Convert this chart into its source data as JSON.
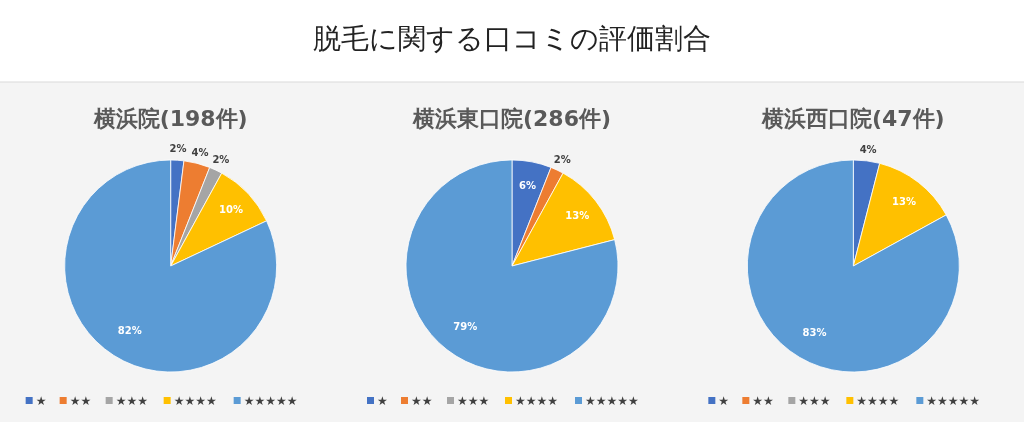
{
  "chart_data": [
    {
      "type": "pie",
      "title": "横浜院(198件)",
      "annotations": [
        "脱毛に関する口コミの評価割合"
      ],
      "categories": [
        "★",
        "★★",
        "★★★",
        "★★★★",
        "★★★★★"
      ],
      "values": [
        2,
        4,
        2,
        10,
        82
      ],
      "value_labels": [
        "2%",
        "4%",
        "2%",
        "10%",
        "82%"
      ],
      "colors": [
        "#4472c4",
        "#ed7d31",
        "#a5a5a5",
        "#ffc000",
        "#5b9bd5"
      ],
      "legend": "bottom"
    },
    {
      "type": "pie",
      "title": "横浜東口院(286件)",
      "categories": [
        "★",
        "★★",
        "★★★",
        "★★★★",
        "★★★★★"
      ],
      "values": [
        6,
        2,
        0,
        13,
        79
      ],
      "value_labels": [
        "6%",
        "2%",
        null,
        "13%",
        "79%"
      ],
      "colors": [
        "#4472c4",
        "#ed7d31",
        "#a5a5a5",
        "#ffc000",
        "#5b9bd5"
      ],
      "legend": "bottom"
    },
    {
      "type": "pie",
      "title": "横浜西口院(47件)",
      "categories": [
        "★",
        "★★",
        "★★★",
        "★★★★",
        "★★★★★"
      ],
      "values": [
        4,
        0,
        0,
        13,
        83
      ],
      "value_labels": [
        "4%",
        null,
        null,
        "13%",
        "83%"
      ],
      "colors": [
        "#4472c4",
        "#ed7d31",
        "#a5a5a5",
        "#ffc000",
        "#5b9bd5"
      ],
      "legend": "bottom"
    }
  ]
}
